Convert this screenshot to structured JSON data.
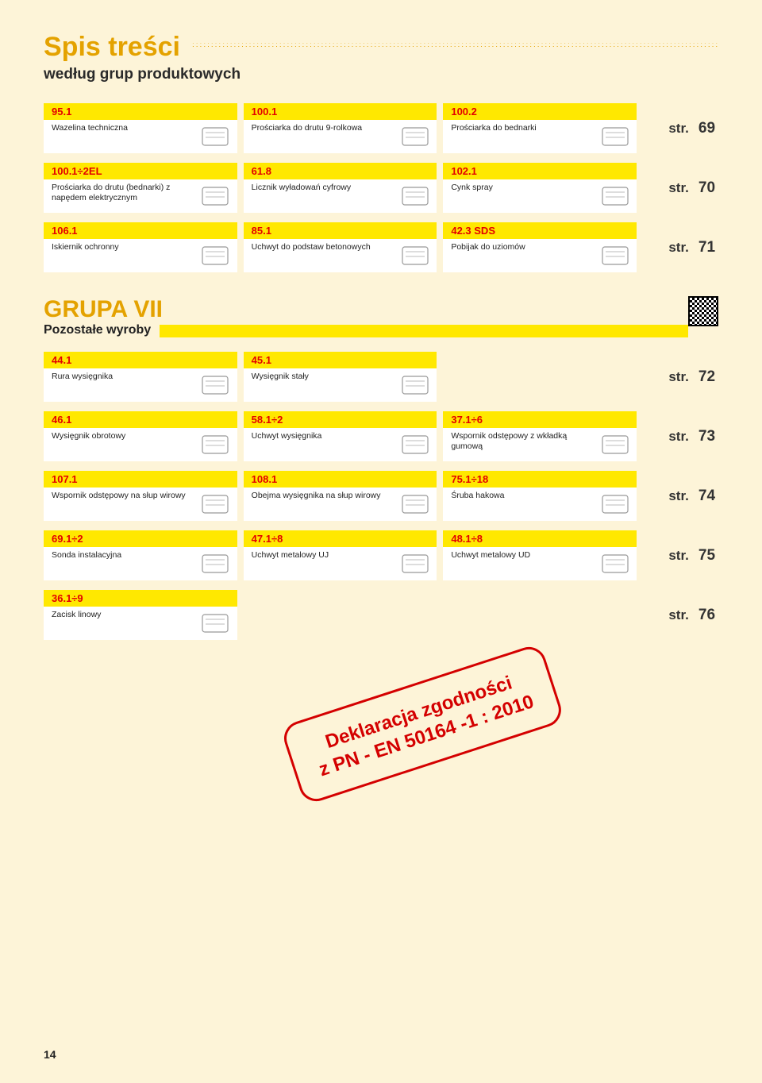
{
  "header": {
    "title": "Spis treści",
    "subtitle": "według grup produktowych"
  },
  "rows_top": [
    {
      "page": "69",
      "items": [
        {
          "code": "95.1",
          "name": "Wazelina techniczna"
        },
        {
          "code": "100.1",
          "name": "Prościarka do drutu 9-rolkowa"
        },
        {
          "code": "100.2",
          "name": "Prościarka do bednarki"
        }
      ]
    },
    {
      "page": "70",
      "items": [
        {
          "code": "100.1÷2EL",
          "name": "Prościarka do drutu (bednarki) z napędem elektrycznym"
        },
        {
          "code": "61.8",
          "name": "Licznik wyładowań cyfrowy"
        },
        {
          "code": "102.1",
          "name": "Cynk spray"
        }
      ]
    },
    {
      "page": "71",
      "items": [
        {
          "code": "106.1",
          "name": "Iskiernik ochronny"
        },
        {
          "code": "85.1",
          "name": "Uchwyt do podstaw betonowych"
        },
        {
          "code": "42.3 SDS",
          "name": "Pobijak do uziomów"
        }
      ]
    }
  ],
  "group": {
    "title": "GRUPA VII",
    "subtitle": "Pozostałe wyroby"
  },
  "rows_group": [
    {
      "page": "72",
      "items": [
        {
          "code": "44.1",
          "name": "Rura wysięgnika"
        },
        {
          "code": "45.1",
          "name": "Wysięgnik stały"
        },
        null
      ]
    },
    {
      "page": "73",
      "items": [
        {
          "code": "46.1",
          "name": "Wysięgnik obrotowy"
        },
        {
          "code": "58.1÷2",
          "name": "Uchwyt wysięgnika"
        },
        {
          "code": "37.1÷6",
          "name": "Wspornik odstępowy z wkładką gumową"
        }
      ]
    },
    {
      "page": "74",
      "items": [
        {
          "code": "107.1",
          "name": "Wspornik odstępowy na słup wirowy"
        },
        {
          "code": "108.1",
          "name": "Obejma wysięgnika na słup wirowy"
        },
        {
          "code": "75.1÷18",
          "name": "Śruba hakowa"
        }
      ]
    },
    {
      "page": "75",
      "items": [
        {
          "code": "69.1÷2",
          "name": "Sonda instalacyjna"
        },
        {
          "code": "47.1÷8",
          "name": "Uchwyt metalowy UJ"
        },
        {
          "code": "48.1÷8",
          "name": "Uchwyt metalowy UD"
        }
      ]
    },
    {
      "page": "76",
      "items": [
        {
          "code": "36.1÷9",
          "name": "Zacisk linowy"
        },
        null,
        null
      ]
    }
  ],
  "stamp": {
    "line1": "Deklaracja zgodności",
    "line2": "z PN - EN 50164 -1 : 2010"
  },
  "page_label": "str.",
  "page_number": "14"
}
